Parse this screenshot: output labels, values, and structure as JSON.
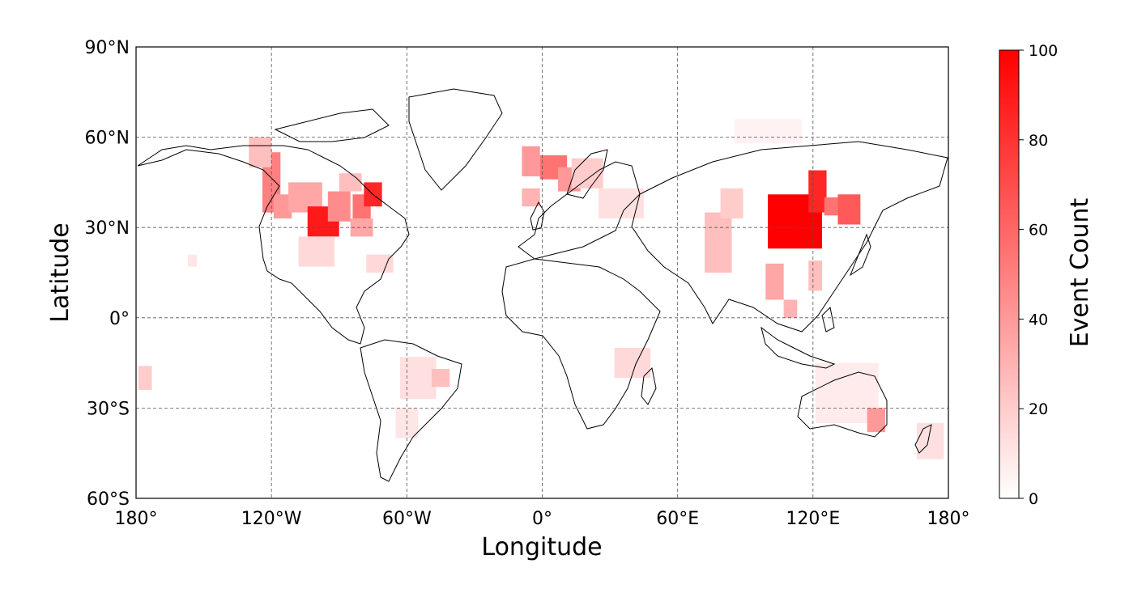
{
  "chart_data": {
    "type": "heatmap",
    "xlabel": "Longitude",
    "ylabel": "Latitude",
    "xlim": [
      -180,
      180
    ],
    "ylim": [
      -60,
      90
    ],
    "x_ticks": [
      {
        "value": -180,
        "label": "180°"
      },
      {
        "value": -120,
        "label": "120°W"
      },
      {
        "value": -60,
        "label": "60°W"
      },
      {
        "value": 0,
        "label": "0°"
      },
      {
        "value": 60,
        "label": "60°E"
      },
      {
        "value": 120,
        "label": "120°E"
      },
      {
        "value": 180,
        "label": "180°"
      }
    ],
    "y_ticks": [
      {
        "value": 90,
        "label": "90°N"
      },
      {
        "value": 60,
        "label": "60°N"
      },
      {
        "value": 30,
        "label": "30°N"
      },
      {
        "value": 0,
        "label": "0°"
      },
      {
        "value": -30,
        "label": "30°S"
      },
      {
        "value": -60,
        "label": "60°S"
      }
    ],
    "grid": true,
    "colorbar": {
      "label": "Event Count",
      "range": [
        0,
        100
      ],
      "ticks": [
        0,
        20,
        40,
        60,
        80,
        100
      ],
      "color_low": "#ffffff",
      "color_high": "#ff0000"
    },
    "cells": [
      {
        "lon": -120,
        "lat": 45,
        "w": 8,
        "h": 20,
        "value": 50
      },
      {
        "lon": -115,
        "lat": 37,
        "w": 8,
        "h": 8,
        "value": 40
      },
      {
        "lon": -105,
        "lat": 40,
        "w": 15,
        "h": 10,
        "value": 35
      },
      {
        "lon": -97,
        "lat": 32,
        "w": 14,
        "h": 10,
        "value": 90
      },
      {
        "lon": -90,
        "lat": 37,
        "w": 10,
        "h": 10,
        "value": 45
      },
      {
        "lon": -80,
        "lat": 37,
        "w": 8,
        "h": 8,
        "value": 55
      },
      {
        "lon": -75,
        "lat": 41,
        "w": 8,
        "h": 8,
        "value": 85
      },
      {
        "lon": -80,
        "lat": 30,
        "w": 10,
        "h": 6,
        "value": 35
      },
      {
        "lon": -85,
        "lat": 45,
        "w": 10,
        "h": 6,
        "value": 25
      },
      {
        "lon": -100,
        "lat": 22,
        "w": 16,
        "h": 10,
        "value": 15
      },
      {
        "lon": -72,
        "lat": 18,
        "w": 12,
        "h": 6,
        "value": 15
      },
      {
        "lon": -125,
        "lat": 55,
        "w": 10,
        "h": 10,
        "value": 25
      },
      {
        "lon": -55,
        "lat": -20,
        "w": 16,
        "h": 14,
        "value": 12
      },
      {
        "lon": -45,
        "lat": -20,
        "w": 8,
        "h": 6,
        "value": 25
      },
      {
        "lon": -60,
        "lat": -35,
        "w": 10,
        "h": 10,
        "value": 10
      },
      {
        "lon": -176,
        "lat": -20,
        "w": 6,
        "h": 8,
        "value": 20
      },
      {
        "lon": -155,
        "lat": 19,
        "w": 4,
        "h": 4,
        "value": 10
      },
      {
        "lon": -5,
        "lat": 52,
        "w": 8,
        "h": 10,
        "value": 40
      },
      {
        "lon": 5,
        "lat": 50,
        "w": 12,
        "h": 8,
        "value": 55
      },
      {
        "lon": 12,
        "lat": 46,
        "w": 10,
        "h": 8,
        "value": 40
      },
      {
        "lon": -5,
        "lat": 40,
        "w": 8,
        "h": 6,
        "value": 30
      },
      {
        "lon": 20,
        "lat": 48,
        "w": 14,
        "h": 10,
        "value": 20
      },
      {
        "lon": 35,
        "lat": 38,
        "w": 20,
        "h": 10,
        "value": 12
      },
      {
        "lon": 40,
        "lat": -15,
        "w": 16,
        "h": 10,
        "value": 15
      },
      {
        "lon": 78,
        "lat": 25,
        "w": 12,
        "h": 20,
        "value": 25
      },
      {
        "lon": 84,
        "lat": 38,
        "w": 10,
        "h": 10,
        "value": 20
      },
      {
        "lon": 112,
        "lat": 32,
        "w": 24,
        "h": 18,
        "value": 100
      },
      {
        "lon": 122,
        "lat": 42,
        "w": 8,
        "h": 14,
        "value": 85
      },
      {
        "lon": 128,
        "lat": 37,
        "w": 6,
        "h": 6,
        "value": 55
      },
      {
        "lon": 136,
        "lat": 36,
        "w": 10,
        "h": 10,
        "value": 65
      },
      {
        "lon": 103,
        "lat": 12,
        "w": 8,
        "h": 12,
        "value": 35
      },
      {
        "lon": 110,
        "lat": 3,
        "w": 6,
        "h": 6,
        "value": 30
      },
      {
        "lon": 121,
        "lat": 14,
        "w": 6,
        "h": 10,
        "value": 25
      },
      {
        "lon": 135,
        "lat": -25,
        "w": 28,
        "h": 20,
        "value": 8
      },
      {
        "lon": 148,
        "lat": -34,
        "w": 8,
        "h": 8,
        "value": 40
      },
      {
        "lon": 172,
        "lat": -41,
        "w": 12,
        "h": 12,
        "value": 12
      },
      {
        "lon": 100,
        "lat": 62,
        "w": 30,
        "h": 8,
        "value": 5
      }
    ]
  }
}
